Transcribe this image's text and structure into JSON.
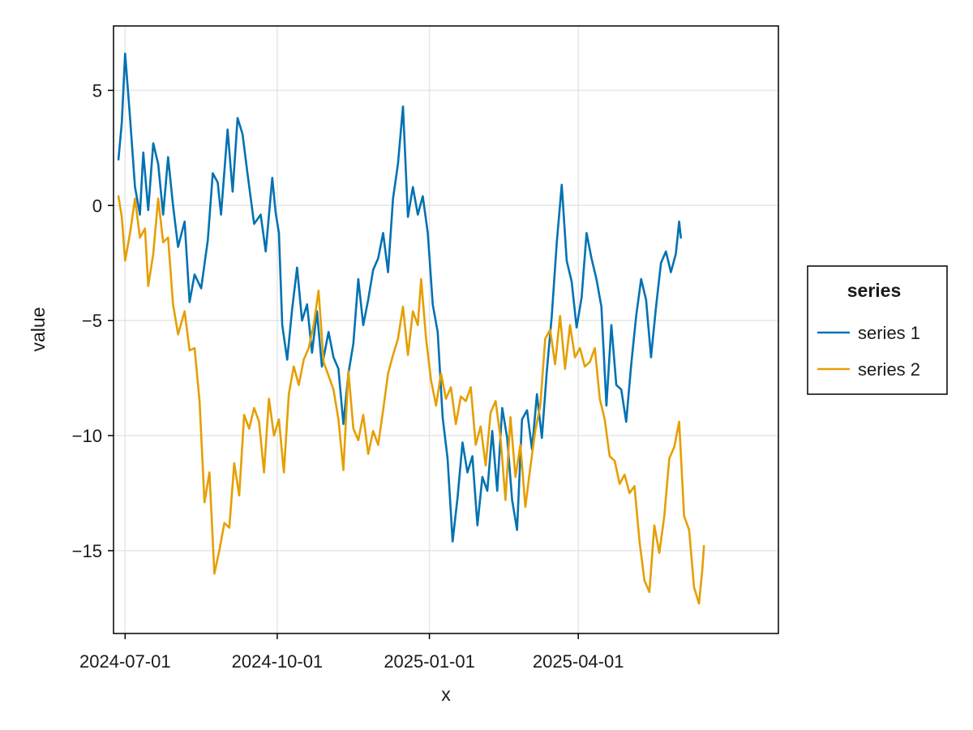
{
  "chart_data": {
    "type": "line",
    "xlabel": "x",
    "ylabel": "value",
    "x_type": "date",
    "xlim": [
      "2024-06-24",
      "2025-07-31"
    ],
    "ylim": [
      -18.6,
      7.8
    ],
    "x_ticks": [
      "2024-07-01",
      "2024-10-01",
      "2025-01-01",
      "2025-04-01"
    ],
    "y_ticks": [
      5,
      0,
      -5,
      -10,
      -15
    ],
    "y_tick_labels": [
      "5",
      "0",
      "−5",
      "−10",
      "−15"
    ],
    "grid": true,
    "legend": {
      "title": "series",
      "placement": "right"
    },
    "series": [
      {
        "name": "series 1",
        "color": "#0072b2",
        "points": [
          [
            "2024-06-27",
            2.0
          ],
          [
            "2024-06-29",
            3.6
          ],
          [
            "2024-07-01",
            6.6
          ],
          [
            "2024-07-04",
            3.8
          ],
          [
            "2024-07-07",
            0.8
          ],
          [
            "2024-07-10",
            -0.4
          ],
          [
            "2024-07-12",
            2.3
          ],
          [
            "2024-07-15",
            -0.2
          ],
          [
            "2024-07-18",
            2.7
          ],
          [
            "2024-07-21",
            1.8
          ],
          [
            "2024-07-24",
            -0.4
          ],
          [
            "2024-07-27",
            2.1
          ],
          [
            "2024-07-30",
            0.0
          ],
          [
            "2024-08-02",
            -1.8
          ],
          [
            "2024-08-06",
            -0.7
          ],
          [
            "2024-08-09",
            -4.2
          ],
          [
            "2024-08-12",
            -3.0
          ],
          [
            "2024-08-16",
            -3.6
          ],
          [
            "2024-08-20",
            -1.5
          ],
          [
            "2024-08-23",
            1.4
          ],
          [
            "2024-08-26",
            1.0
          ],
          [
            "2024-08-28",
            -0.4
          ],
          [
            "2024-09-01",
            3.3
          ],
          [
            "2024-09-04",
            0.6
          ],
          [
            "2024-09-07",
            3.8
          ],
          [
            "2024-09-10",
            3.1
          ],
          [
            "2024-09-13",
            1.4
          ],
          [
            "2024-09-17",
            -0.8
          ],
          [
            "2024-09-21",
            -0.4
          ],
          [
            "2024-09-24",
            -2.0
          ],
          [
            "2024-09-28",
            1.2
          ],
          [
            "2024-09-30",
            -0.3
          ],
          [
            "2024-10-02",
            -1.2
          ],
          [
            "2024-10-04",
            -5.2
          ],
          [
            "2024-10-07",
            -6.7
          ],
          [
            "2024-10-10",
            -4.5
          ],
          [
            "2024-10-13",
            -2.7
          ],
          [
            "2024-10-16",
            -5.0
          ],
          [
            "2024-10-19",
            -4.3
          ],
          [
            "2024-10-22",
            -6.4
          ],
          [
            "2024-10-25",
            -4.6
          ],
          [
            "2024-10-28",
            -7.0
          ],
          [
            "2024-11-01",
            -5.5
          ],
          [
            "2024-11-04",
            -6.6
          ],
          [
            "2024-11-07",
            -7.1
          ],
          [
            "2024-11-10",
            -9.5
          ],
          [
            "2024-11-13",
            -7.3
          ],
          [
            "2024-11-16",
            -6.0
          ],
          [
            "2024-11-19",
            -3.2
          ],
          [
            "2024-11-22",
            -5.2
          ],
          [
            "2024-11-25",
            -4.1
          ],
          [
            "2024-11-28",
            -2.8
          ],
          [
            "2024-12-01",
            -2.3
          ],
          [
            "2024-12-04",
            -1.2
          ],
          [
            "2024-12-07",
            -2.9
          ],
          [
            "2024-12-10",
            0.3
          ],
          [
            "2024-12-13",
            1.8
          ],
          [
            "2024-12-16",
            4.3
          ],
          [
            "2024-12-19",
            -0.5
          ],
          [
            "2024-12-22",
            0.8
          ],
          [
            "2024-12-25",
            -0.4
          ],
          [
            "2024-12-28",
            0.4
          ],
          [
            "2024-12-31",
            -1.2
          ],
          [
            "2025-01-03",
            -4.3
          ],
          [
            "2025-01-06",
            -5.5
          ],
          [
            "2025-01-09",
            -9.2
          ],
          [
            "2025-01-12",
            -11.0
          ],
          [
            "2025-01-15",
            -14.6
          ],
          [
            "2025-01-18",
            -12.7
          ],
          [
            "2025-01-21",
            -10.3
          ],
          [
            "2025-01-24",
            -11.6
          ],
          [
            "2025-01-27",
            -10.9
          ],
          [
            "2025-01-30",
            -13.9
          ],
          [
            "2025-02-02",
            -11.8
          ],
          [
            "2025-02-05",
            -12.4
          ],
          [
            "2025-02-08",
            -9.8
          ],
          [
            "2025-02-11",
            -12.4
          ],
          [
            "2025-02-14",
            -8.8
          ],
          [
            "2025-02-17",
            -10.1
          ],
          [
            "2025-02-20",
            -12.8
          ],
          [
            "2025-02-23",
            -14.1
          ],
          [
            "2025-02-26",
            -9.3
          ],
          [
            "2025-03-01",
            -8.9
          ],
          [
            "2025-03-04",
            -10.6
          ],
          [
            "2025-03-07",
            -8.2
          ],
          [
            "2025-03-10",
            -10.1
          ],
          [
            "2025-03-13",
            -7.2
          ],
          [
            "2025-03-16",
            -4.8
          ],
          [
            "2025-03-19",
            -1.6
          ],
          [
            "2025-03-22",
            0.9
          ],
          [
            "2025-03-25",
            -2.4
          ],
          [
            "2025-03-28",
            -3.3
          ],
          [
            "2025-03-31",
            -5.3
          ],
          [
            "2025-04-03",
            -4.0
          ],
          [
            "2025-04-06",
            -1.2
          ],
          [
            "2025-04-09",
            -2.3
          ],
          [
            "2025-04-12",
            -3.2
          ],
          [
            "2025-04-15",
            -4.4
          ],
          [
            "2025-04-18",
            -8.7
          ],
          [
            "2025-04-21",
            -5.2
          ],
          [
            "2025-04-24",
            -7.8
          ],
          [
            "2025-04-27",
            -8.0
          ],
          [
            "2025-04-30",
            -9.4
          ],
          [
            "2025-05-03",
            -6.9
          ],
          [
            "2025-05-06",
            -4.8
          ],
          [
            "2025-05-09",
            -3.2
          ],
          [
            "2025-05-12",
            -4.1
          ],
          [
            "2025-05-15",
            -6.6
          ],
          [
            "2025-05-18",
            -4.4
          ],
          [
            "2025-05-21",
            -2.5
          ],
          [
            "2025-05-24",
            -2.0
          ],
          [
            "2025-05-27",
            -2.9
          ],
          [
            "2025-05-30",
            -2.1
          ],
          [
            "2025-06-01",
            -0.7
          ],
          [
            "2025-06-02",
            -1.4
          ]
        ]
      },
      {
        "name": "series 2",
        "color": "#e69f00",
        "points": [
          [
            "2024-06-27",
            0.4
          ],
          [
            "2024-06-29",
            -0.5
          ],
          [
            "2024-07-01",
            -2.4
          ],
          [
            "2024-07-04",
            -1.2
          ],
          [
            "2024-07-07",
            0.3
          ],
          [
            "2024-07-10",
            -1.4
          ],
          [
            "2024-07-13",
            -1.0
          ],
          [
            "2024-07-15",
            -3.5
          ],
          [
            "2024-07-18",
            -2.1
          ],
          [
            "2024-07-21",
            0.3
          ],
          [
            "2024-07-24",
            -1.6
          ],
          [
            "2024-07-27",
            -1.4
          ],
          [
            "2024-07-30",
            -4.3
          ],
          [
            "2024-08-02",
            -5.6
          ],
          [
            "2024-08-06",
            -4.6
          ],
          [
            "2024-08-09",
            -6.3
          ],
          [
            "2024-08-12",
            -6.2
          ],
          [
            "2024-08-15",
            -8.5
          ],
          [
            "2024-08-18",
            -12.9
          ],
          [
            "2024-08-21",
            -11.6
          ],
          [
            "2024-08-24",
            -16.0
          ],
          [
            "2024-08-27",
            -15.0
          ],
          [
            "2024-08-30",
            -13.8
          ],
          [
            "2024-09-02",
            -14.0
          ],
          [
            "2024-09-05",
            -11.2
          ],
          [
            "2024-09-08",
            -12.6
          ],
          [
            "2024-09-11",
            -9.1
          ],
          [
            "2024-09-14",
            -9.7
          ],
          [
            "2024-09-17",
            -8.8
          ],
          [
            "2024-09-20",
            -9.4
          ],
          [
            "2024-09-23",
            -11.6
          ],
          [
            "2024-09-26",
            -8.4
          ],
          [
            "2024-09-29",
            -10.0
          ],
          [
            "2024-10-02",
            -9.3
          ],
          [
            "2024-10-05",
            -11.6
          ],
          [
            "2024-10-08",
            -8.2
          ],
          [
            "2024-10-11",
            -7.0
          ],
          [
            "2024-10-14",
            -7.8
          ],
          [
            "2024-10-17",
            -6.7
          ],
          [
            "2024-10-20",
            -6.2
          ],
          [
            "2024-10-23",
            -5.2
          ],
          [
            "2024-10-26",
            -3.7
          ],
          [
            "2024-10-29",
            -6.8
          ],
          [
            "2024-11-01",
            -7.4
          ],
          [
            "2024-11-04",
            -8.0
          ],
          [
            "2024-11-07",
            -9.3
          ],
          [
            "2024-11-10",
            -11.5
          ],
          [
            "2024-11-13",
            -7.2
          ],
          [
            "2024-11-16",
            -9.7
          ],
          [
            "2024-11-19",
            -10.2
          ],
          [
            "2024-11-22",
            -9.1
          ],
          [
            "2024-11-25",
            -10.8
          ],
          [
            "2024-11-28",
            -9.8
          ],
          [
            "2024-12-01",
            -10.4
          ],
          [
            "2024-12-04",
            -8.9
          ],
          [
            "2024-12-07",
            -7.3
          ],
          [
            "2024-12-10",
            -6.5
          ],
          [
            "2024-12-13",
            -5.8
          ],
          [
            "2024-12-16",
            -4.4
          ],
          [
            "2024-12-19",
            -6.5
          ],
          [
            "2024-12-22",
            -4.6
          ],
          [
            "2024-12-25",
            -5.2
          ],
          [
            "2024-12-27",
            -3.2
          ],
          [
            "2024-12-30",
            -5.8
          ],
          [
            "2025-01-02",
            -7.6
          ],
          [
            "2025-01-05",
            -8.7
          ],
          [
            "2025-01-08",
            -7.3
          ],
          [
            "2025-01-11",
            -8.4
          ],
          [
            "2025-01-14",
            -7.9
          ],
          [
            "2025-01-17",
            -9.5
          ],
          [
            "2025-01-20",
            -8.3
          ],
          [
            "2025-01-23",
            -8.5
          ],
          [
            "2025-01-26",
            -7.9
          ],
          [
            "2025-01-29",
            -10.4
          ],
          [
            "2025-02-01",
            -9.6
          ],
          [
            "2025-02-04",
            -11.3
          ],
          [
            "2025-02-07",
            -9.0
          ],
          [
            "2025-02-10",
            -8.5
          ],
          [
            "2025-02-13",
            -10.1
          ],
          [
            "2025-02-16",
            -12.8
          ],
          [
            "2025-02-19",
            -9.2
          ],
          [
            "2025-02-22",
            -11.8
          ],
          [
            "2025-02-25",
            -10.4
          ],
          [
            "2025-02-28",
            -13.1
          ],
          [
            "2025-03-03",
            -11.4
          ],
          [
            "2025-03-06",
            -9.8
          ],
          [
            "2025-03-09",
            -8.7
          ],
          [
            "2025-03-12",
            -5.8
          ],
          [
            "2025-03-15",
            -5.4
          ],
          [
            "2025-03-18",
            -6.9
          ],
          [
            "2025-03-21",
            -4.8
          ],
          [
            "2025-03-24",
            -7.1
          ],
          [
            "2025-03-27",
            -5.2
          ],
          [
            "2025-03-30",
            -6.6
          ],
          [
            "2025-04-02",
            -6.2
          ],
          [
            "2025-04-05",
            -7.0
          ],
          [
            "2025-04-08",
            -6.8
          ],
          [
            "2025-04-11",
            -6.2
          ],
          [
            "2025-04-14",
            -8.4
          ],
          [
            "2025-04-17",
            -9.3
          ],
          [
            "2025-04-20",
            -10.9
          ],
          [
            "2025-04-23",
            -11.1
          ],
          [
            "2025-04-26",
            -12.1
          ],
          [
            "2025-04-29",
            -11.7
          ],
          [
            "2025-05-02",
            -12.5
          ],
          [
            "2025-05-05",
            -12.2
          ],
          [
            "2025-05-08",
            -14.6
          ],
          [
            "2025-05-11",
            -16.3
          ],
          [
            "2025-05-14",
            -16.8
          ],
          [
            "2025-05-17",
            -13.9
          ],
          [
            "2025-05-20",
            -15.1
          ],
          [
            "2025-05-23",
            -13.5
          ],
          [
            "2025-05-26",
            -11.0
          ],
          [
            "2025-05-29",
            -10.5
          ],
          [
            "2025-06-01",
            -9.4
          ],
          [
            "2025-06-04",
            -13.5
          ],
          [
            "2025-06-07",
            -14.1
          ],
          [
            "2025-06-10",
            -16.6
          ],
          [
            "2025-06-13",
            -17.3
          ],
          [
            "2025-06-15",
            -15.8
          ],
          [
            "2025-06-16",
            -14.8
          ]
        ]
      }
    ]
  }
}
